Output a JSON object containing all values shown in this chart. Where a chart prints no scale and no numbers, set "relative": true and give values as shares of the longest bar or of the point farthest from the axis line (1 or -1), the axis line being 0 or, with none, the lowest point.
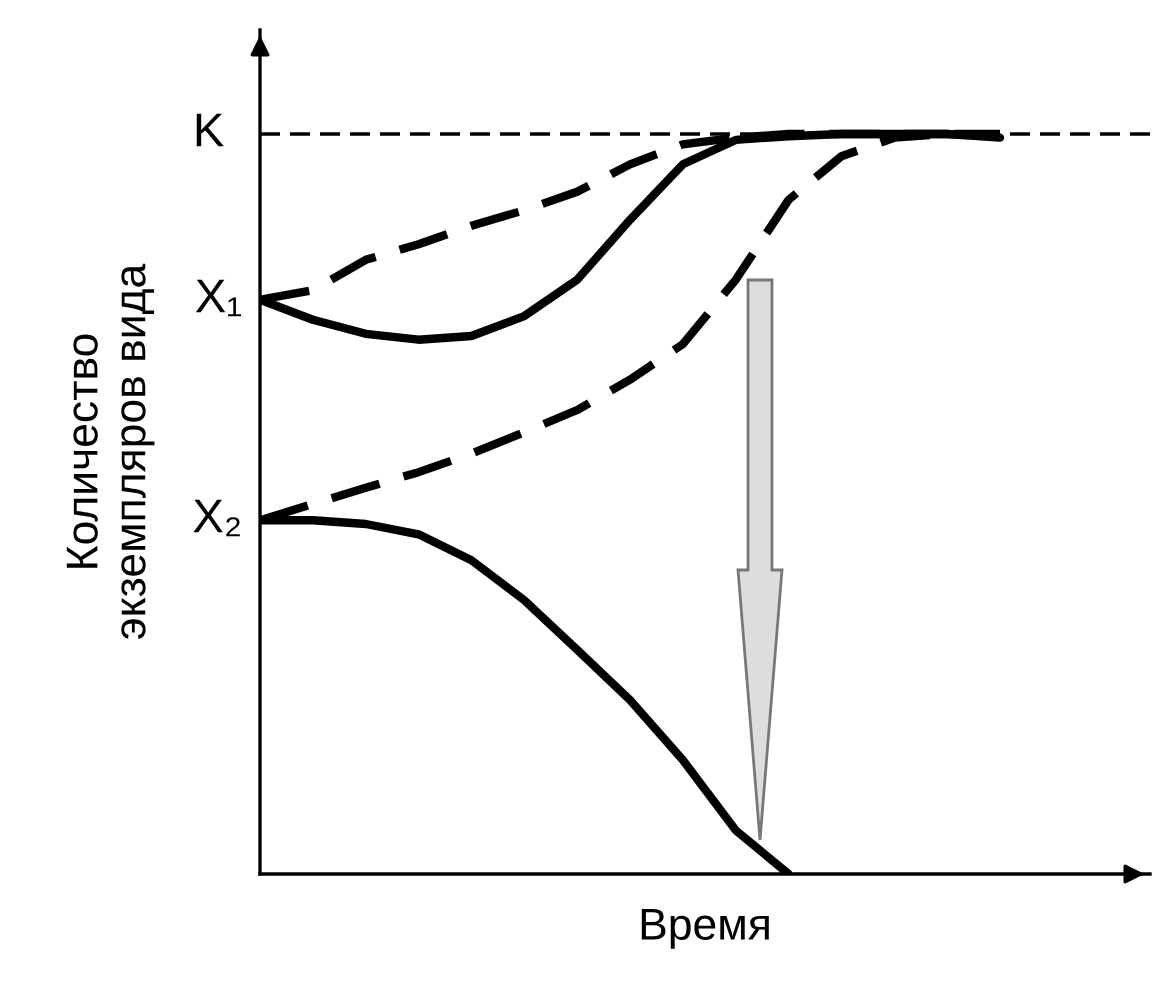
{
  "chart_data": {
    "type": "line",
    "relative": true,
    "xlabel": "Время",
    "ylabel": "Количество\nэкземпляров вида",
    "categories": [
      null,
      null,
      null,
      null,
      null,
      null,
      null,
      null,
      null,
      null,
      null,
      null,
      null,
      null,
      null
    ],
    "series": [
      {
        "color": "#000000",
        "line_style": "dashed",
        "values": [
          0.776,
          0.789,
          0.83,
          0.851,
          0.876,
          0.897,
          0.922,
          0.959,
          0.986,
          0.995,
          1.0,
          1.0,
          1.0,
          1.0,
          0.997
        ]
      },
      {
        "color": "#000000",
        "line_style": "solid",
        "values": [
          0.776,
          0.749,
          0.73,
          0.722,
          0.727,
          0.754,
          0.803,
          0.884,
          0.959,
          0.992,
          0.997,
          1.0,
          1.0,
          1.0,
          0.995
        ]
      },
      {
        "color": "#000000",
        "line_style": "dashed",
        "values": [
          0.478,
          0.5,
          0.522,
          0.543,
          0.568,
          0.597,
          0.627,
          0.668,
          0.716,
          0.803,
          0.911,
          0.97,
          0.995,
          1.0,
          1.0
        ]
      },
      {
        "color": "#000000",
        "line_style": "solid",
        "values": [
          0.478,
          0.478,
          0.473,
          0.459,
          0.424,
          0.37,
          0.303,
          0.235,
          0.154,
          0.059,
          0.0,
          null,
          null,
          null,
          null
        ]
      }
    ],
    "ref_lines": [
      {
        "axis": "y",
        "value": 1.0,
        "label": "K",
        "line_style": "dashed",
        "color": "#000000"
      }
    ],
    "annotations": [
      "X₁",
      "X₂"
    ]
  }
}
